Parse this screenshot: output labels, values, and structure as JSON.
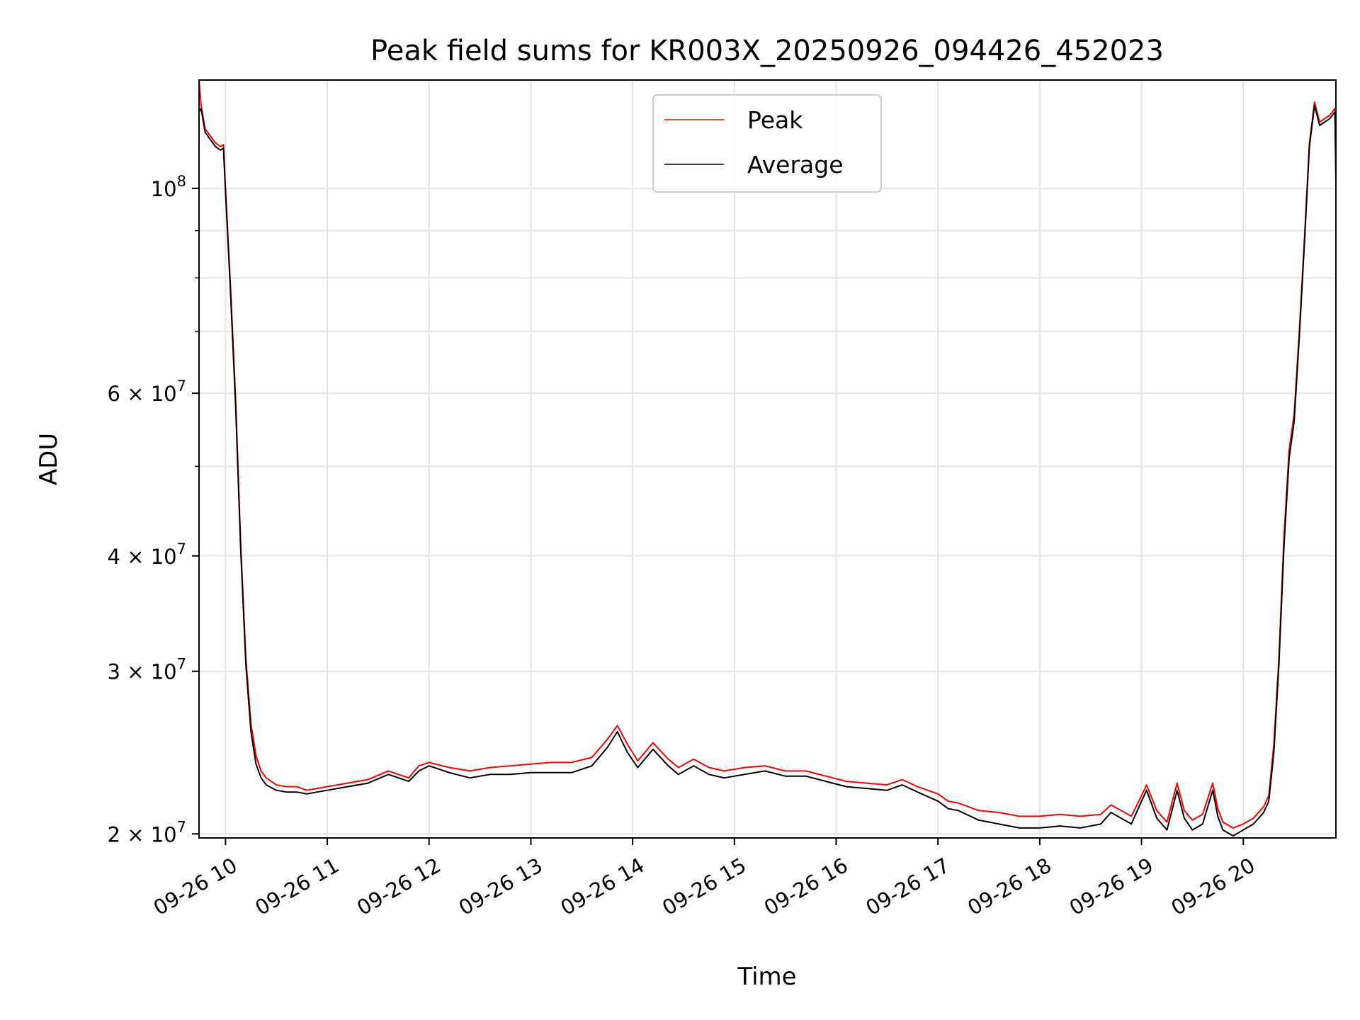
{
  "chart_data": {
    "type": "line",
    "title": "Peak field sums for KR003X_20250926_094426_452023",
    "xlabel": "Time",
    "ylabel": "ADU",
    "x_unit": "hours (local clock, 2025-09-26)",
    "xlim": [
      9.74,
      20.91
    ],
    "ylim": [
      19800000,
      131000000
    ],
    "y_scale": "log",
    "grid": true,
    "legend": {
      "placement": "top-center",
      "entries": [
        "Peak",
        "Average"
      ]
    },
    "x_ticks": [
      {
        "value": 10,
        "label": "09-26 10"
      },
      {
        "value": 11,
        "label": "09-26 11"
      },
      {
        "value": 12,
        "label": "09-26 12"
      },
      {
        "value": 13,
        "label": "09-26 13"
      },
      {
        "value": 14,
        "label": "09-26 14"
      },
      {
        "value": 15,
        "label": "09-26 15"
      },
      {
        "value": 16,
        "label": "09-26 16"
      },
      {
        "value": 17,
        "label": "09-26 17"
      },
      {
        "value": 18,
        "label": "09-26 18"
      },
      {
        "value": 19,
        "label": "09-26 19"
      },
      {
        "value": 20,
        "label": "09-26 20"
      }
    ],
    "y_ticks_major": [
      {
        "value": 20000000,
        "base": "2 × 10",
        "exp": "7"
      },
      {
        "value": 30000000,
        "base": "3 × 10",
        "exp": "7"
      },
      {
        "value": 40000000,
        "base": "4 × 10",
        "exp": "7"
      },
      {
        "value": 60000000,
        "base": "6 × 10",
        "exp": "7"
      },
      {
        "value": 100000000,
        "base": "10",
        "exp": "8"
      }
    ],
    "y_ticks_minor": [
      50000000,
      70000000,
      80000000,
      90000000
    ],
    "series": [
      {
        "name": "Peak",
        "color": "#ff0000",
        "x": [
          9.74,
          9.76,
          9.8,
          9.85,
          9.9,
          9.95,
          9.98,
          10.0,
          10.05,
          10.1,
          10.15,
          10.2,
          10.25,
          10.3,
          10.35,
          10.4,
          10.5,
          10.6,
          10.7,
          10.8,
          10.9,
          11.0,
          11.2,
          11.4,
          11.6,
          11.7,
          11.8,
          11.9,
          12.0,
          12.2,
          12.4,
          12.6,
          12.8,
          13.0,
          13.2,
          13.4,
          13.6,
          13.75,
          13.85,
          13.95,
          14.05,
          14.2,
          14.35,
          14.45,
          14.6,
          14.75,
          14.9,
          15.1,
          15.3,
          15.5,
          15.7,
          15.9,
          16.1,
          16.3,
          16.5,
          16.65,
          16.8,
          17.0,
          17.1,
          17.2,
          17.4,
          17.6,
          17.8,
          18.0,
          18.2,
          18.4,
          18.6,
          18.7,
          18.8,
          18.9,
          19.0,
          19.05,
          19.15,
          19.25,
          19.35,
          19.42,
          19.5,
          19.6,
          19.7,
          19.75,
          19.8,
          19.9,
          20.0,
          20.1,
          20.2,
          20.25,
          20.3,
          20.35,
          20.4,
          20.45,
          20.5,
          20.55,
          20.6,
          20.65,
          20.7,
          20.75,
          20.8,
          20.85,
          20.9,
          20.91
        ],
        "y": [
          131000000,
          123000000,
          116000000,
          114000000,
          112000000,
          111000000,
          111500000,
          100000000,
          78000000,
          59000000,
          41000000,
          31000000,
          26300000,
          24300000,
          23400000,
          23000000,
          22600000,
          22500000,
          22500000,
          22300000,
          22400000,
          22500000,
          22700000,
          22900000,
          23400000,
          23200000,
          23000000,
          23700000,
          23900000,
          23600000,
          23400000,
          23600000,
          23700000,
          23800000,
          23900000,
          23900000,
          24200000,
          25300000,
          26200000,
          25000000,
          24000000,
          25100000,
          24100000,
          23600000,
          24100000,
          23600000,
          23400000,
          23600000,
          23700000,
          23400000,
          23400000,
          23100000,
          22800000,
          22700000,
          22600000,
          22900000,
          22500000,
          22100000,
          21700000,
          21600000,
          21200000,
          21100000,
          20900000,
          20900000,
          21000000,
          20900000,
          21000000,
          21500000,
          21200000,
          20900000,
          22000000,
          22600000,
          21200000,
          20600000,
          22700000,
          21200000,
          20700000,
          21000000,
          22700000,
          21300000,
          20600000,
          20300000,
          20500000,
          20800000,
          21400000,
          22000000,
          25000000,
          31000000,
          42000000,
          52000000,
          57000000,
          70000000,
          88000000,
          112000000,
          124000000,
          118000000,
          119000000,
          120000000,
          122000000,
          103000000
        ]
      },
      {
        "name": "Average",
        "color": "#000000",
        "x": [
          9.74,
          9.76,
          9.8,
          9.85,
          9.9,
          9.95,
          9.98,
          10.0,
          10.05,
          10.1,
          10.15,
          10.2,
          10.25,
          10.3,
          10.35,
          10.4,
          10.5,
          10.6,
          10.7,
          10.8,
          10.9,
          11.0,
          11.2,
          11.4,
          11.6,
          11.7,
          11.8,
          11.9,
          12.0,
          12.2,
          12.4,
          12.6,
          12.8,
          13.0,
          13.2,
          13.4,
          13.6,
          13.75,
          13.85,
          13.95,
          14.05,
          14.2,
          14.35,
          14.45,
          14.6,
          14.75,
          14.9,
          15.1,
          15.3,
          15.5,
          15.7,
          15.9,
          16.1,
          16.3,
          16.5,
          16.65,
          16.8,
          17.0,
          17.1,
          17.2,
          17.4,
          17.6,
          17.8,
          18.0,
          18.2,
          18.4,
          18.6,
          18.7,
          18.8,
          18.9,
          19.0,
          19.05,
          19.15,
          19.25,
          19.35,
          19.42,
          19.5,
          19.6,
          19.7,
          19.75,
          19.8,
          19.9,
          20.0,
          20.1,
          20.2,
          20.25,
          20.3,
          20.35,
          20.4,
          20.45,
          20.5,
          20.55,
          20.6,
          20.65,
          20.7,
          20.75,
          20.8,
          20.85,
          20.9,
          20.91
        ],
        "y": [
          121000000,
          122000000,
          115000000,
          113000000,
          111000000,
          110000000,
          110500000,
          99000000,
          77000000,
          58000000,
          40500000,
          30500000,
          25800000,
          23800000,
          23000000,
          22600000,
          22300000,
          22200000,
          22200000,
          22100000,
          22200000,
          22300000,
          22500000,
          22700000,
          23200000,
          23000000,
          22800000,
          23400000,
          23700000,
          23300000,
          23000000,
          23200000,
          23200000,
          23300000,
          23300000,
          23300000,
          23700000,
          24800000,
          25800000,
          24500000,
          23600000,
          24700000,
          23700000,
          23200000,
          23700000,
          23200000,
          23000000,
          23200000,
          23400000,
          23100000,
          23100000,
          22800000,
          22500000,
          22400000,
          22300000,
          22600000,
          22200000,
          21700000,
          21300000,
          21200000,
          20700000,
          20500000,
          20300000,
          20300000,
          20400000,
          20300000,
          20500000,
          21100000,
          20800000,
          20500000,
          21700000,
          22300000,
          20800000,
          20200000,
          22300000,
          20800000,
          20200000,
          20500000,
          22300000,
          20900000,
          20200000,
          19900000,
          20200000,
          20500000,
          21100000,
          21700000,
          24500000,
          30500000,
          41000000,
          51000000,
          56000000,
          69000000,
          87000000,
          111000000,
          123000000,
          117000000,
          118000000,
          119000000,
          121000000,
          102000000
        ]
      }
    ]
  }
}
